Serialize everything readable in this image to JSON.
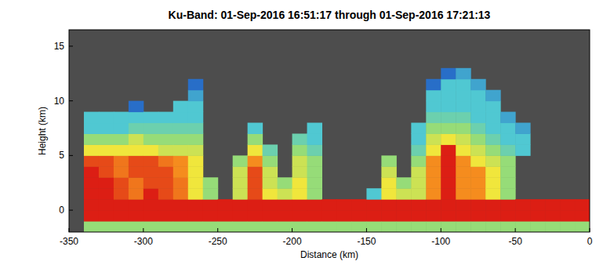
{
  "chart_data": {
    "type": "heatmap",
    "title": "Ku-Band: 01-Sep-2016 16:51:17 through 01-Sep-2016 17:21:13",
    "x_label": "Distance (km)",
    "y_label": "Height (km)",
    "xlim": [
      -350,
      0
    ],
    "ylim": [
      -2,
      16.5
    ],
    "xticks": [
      -350,
      -300,
      -250,
      -200,
      -150,
      -100,
      -50,
      0
    ],
    "yticks": [
      0,
      5,
      10,
      15
    ],
    "grid": false,
    "color_range": [
      15,
      40
    ],
    "x_bins": [
      -340,
      -330,
      -320,
      -310,
      -300,
      -290,
      -280,
      -270,
      -260,
      -250,
      -240,
      -230,
      -220,
      -210,
      -200,
      -190,
      -180,
      -170,
      -160,
      -150,
      -140,
      -130,
      -120,
      -110,
      -100,
      -90,
      -80,
      -70,
      -60,
      -50,
      -40,
      -30,
      -20,
      -10,
      0
    ],
    "y_bins": [
      -2,
      -1,
      0,
      1,
      2,
      3,
      4,
      5,
      6,
      7,
      8,
      9,
      10,
      11,
      12,
      13,
      14,
      15
    ],
    "cells": [
      [
        25,
        40,
        40,
        40,
        40,
        40,
        38,
        30,
        25,
        20,
        20,
        null,
        null,
        null,
        null,
        null,
        null
      ],
      [
        25,
        40,
        40,
        40,
        40,
        38,
        38,
        30,
        25,
        20,
        20,
        null,
        null,
        null,
        null,
        null,
        null
      ],
      [
        25,
        40,
        40,
        38,
        38,
        36,
        36,
        30,
        25,
        20,
        20,
        null,
        null,
        null,
        null,
        null,
        null
      ],
      [
        25,
        40,
        40,
        36,
        36,
        38,
        38,
        30,
        28,
        22,
        20,
        15,
        null,
        null,
        null,
        null,
        null
      ],
      [
        25,
        40,
        40,
        40,
        38,
        38,
        38,
        30,
        25,
        22,
        20,
        null,
        null,
        null,
        null,
        null,
        null
      ],
      [
        25,
        40,
        40,
        38,
        38,
        38,
        36,
        28,
        25,
        22,
        20,
        null,
        null,
        null,
        null,
        null,
        null
      ],
      [
        25,
        40,
        40,
        36,
        36,
        35,
        35,
        28,
        25,
        22,
        20,
        20,
        null,
        null,
        null,
        null,
        null
      ],
      [
        25,
        40,
        40,
        30,
        30,
        30,
        30,
        28,
        25,
        22,
        20,
        20,
        18,
        15,
        null,
        null,
        null
      ],
      [
        25,
        40,
        40,
        25,
        25,
        null,
        null,
        null,
        null,
        null,
        null,
        null,
        null,
        null,
        null,
        null,
        null
      ],
      [
        25,
        40,
        40,
        null,
        null,
        null,
        null,
        null,
        null,
        null,
        null,
        null,
        null,
        null,
        null,
        null,
        null
      ],
      [
        25,
        40,
        40,
        28,
        28,
        28,
        25,
        null,
        null,
        null,
        null,
        null,
        null,
        null,
        null,
        null,
        null
      ],
      [
        25,
        40,
        40,
        38,
        38,
        38,
        35,
        30,
        25,
        20,
        null,
        null,
        null,
        null,
        null,
        null,
        null
      ],
      [
        25,
        40,
        40,
        30,
        28,
        28,
        25,
        22,
        null,
        null,
        null,
        null,
        null,
        null,
        null,
        null,
        null
      ],
      [
        25,
        40,
        40,
        28,
        25,
        null,
        null,
        null,
        null,
        null,
        null,
        null,
        null,
        null,
        null,
        null,
        null
      ],
      [
        25,
        40,
        40,
        30,
        30,
        28,
        28,
        25,
        22,
        null,
        null,
        null,
        null,
        null,
        null,
        null,
        null
      ],
      [
        25,
        40,
        40,
        25,
        25,
        25,
        25,
        22,
        20,
        20,
        null,
        null,
        null,
        null,
        null,
        null,
        null
      ],
      [
        25,
        40,
        40,
        null,
        null,
        null,
        null,
        null,
        null,
        null,
        null,
        null,
        null,
        null,
        null,
        null,
        null
      ],
      [
        25,
        40,
        40,
        null,
        null,
        null,
        null,
        null,
        null,
        null,
        null,
        null,
        null,
        null,
        null,
        null,
        null
      ],
      [
        25,
        40,
        40,
        null,
        null,
        null,
        null,
        null,
        null,
        null,
        null,
        null,
        null,
        null,
        null,
        null,
        null
      ],
      [
        25,
        40,
        40,
        20,
        null,
        null,
        null,
        null,
        null,
        null,
        null,
        null,
        null,
        null,
        null,
        null,
        null
      ],
      [
        25,
        40,
        40,
        30,
        30,
        28,
        25,
        null,
        null,
        null,
        null,
        null,
        null,
        null,
        null,
        null,
        null
      ],
      [
        25,
        40,
        40,
        28,
        25,
        null,
        null,
        null,
        null,
        null,
        null,
        null,
        null,
        null,
        null,
        null,
        null
      ],
      [
        25,
        40,
        40,
        28,
        28,
        28,
        25,
        22,
        20,
        20,
        null,
        null,
        null,
        null,
        null,
        null,
        null
      ],
      [
        25,
        40,
        40,
        35,
        35,
        35,
        35,
        30,
        28,
        25,
        22,
        20,
        20,
        15,
        null,
        null,
        null
      ],
      [
        25,
        40,
        40,
        40,
        40,
        40,
        40,
        40,
        30,
        25,
        22,
        20,
        20,
        20,
        15,
        null,
        null
      ],
      [
        25,
        40,
        40,
        35,
        35,
        35,
        35,
        30,
        28,
        25,
        22,
        20,
        20,
        20,
        18,
        null,
        null
      ],
      [
        25,
        40,
        40,
        35,
        35,
        35,
        30,
        28,
        25,
        22,
        20,
        20,
        20,
        18,
        null,
        null,
        null
      ],
      [
        25,
        40,
        40,
        30,
        30,
        30,
        28,
        25,
        22,
        20,
        20,
        20,
        18,
        null,
        null,
        null,
        null
      ],
      [
        25,
        40,
        40,
        25,
        25,
        25,
        25,
        22,
        20,
        20,
        18,
        null,
        null,
        null,
        null,
        null,
        null
      ],
      [
        25,
        40,
        40,
        null,
        null,
        null,
        null,
        20,
        20,
        18,
        null,
        null,
        null,
        null,
        null,
        null,
        null
      ],
      [
        25,
        40,
        40,
        null,
        null,
        null,
        null,
        null,
        null,
        null,
        null,
        null,
        null,
        null,
        null,
        null,
        null
      ],
      [
        25,
        40,
        40,
        null,
        null,
        null,
        null,
        null,
        null,
        null,
        null,
        null,
        null,
        null,
        null,
        null,
        null
      ],
      [
        25,
        40,
        40,
        null,
        null,
        null,
        null,
        null,
        null,
        null,
        null,
        null,
        null,
        null,
        null,
        null,
        null
      ],
      [
        25,
        40,
        40,
        null,
        null,
        null,
        null,
        null,
        null,
        null,
        null,
        null,
        null,
        null,
        null,
        null,
        null
      ]
    ]
  }
}
